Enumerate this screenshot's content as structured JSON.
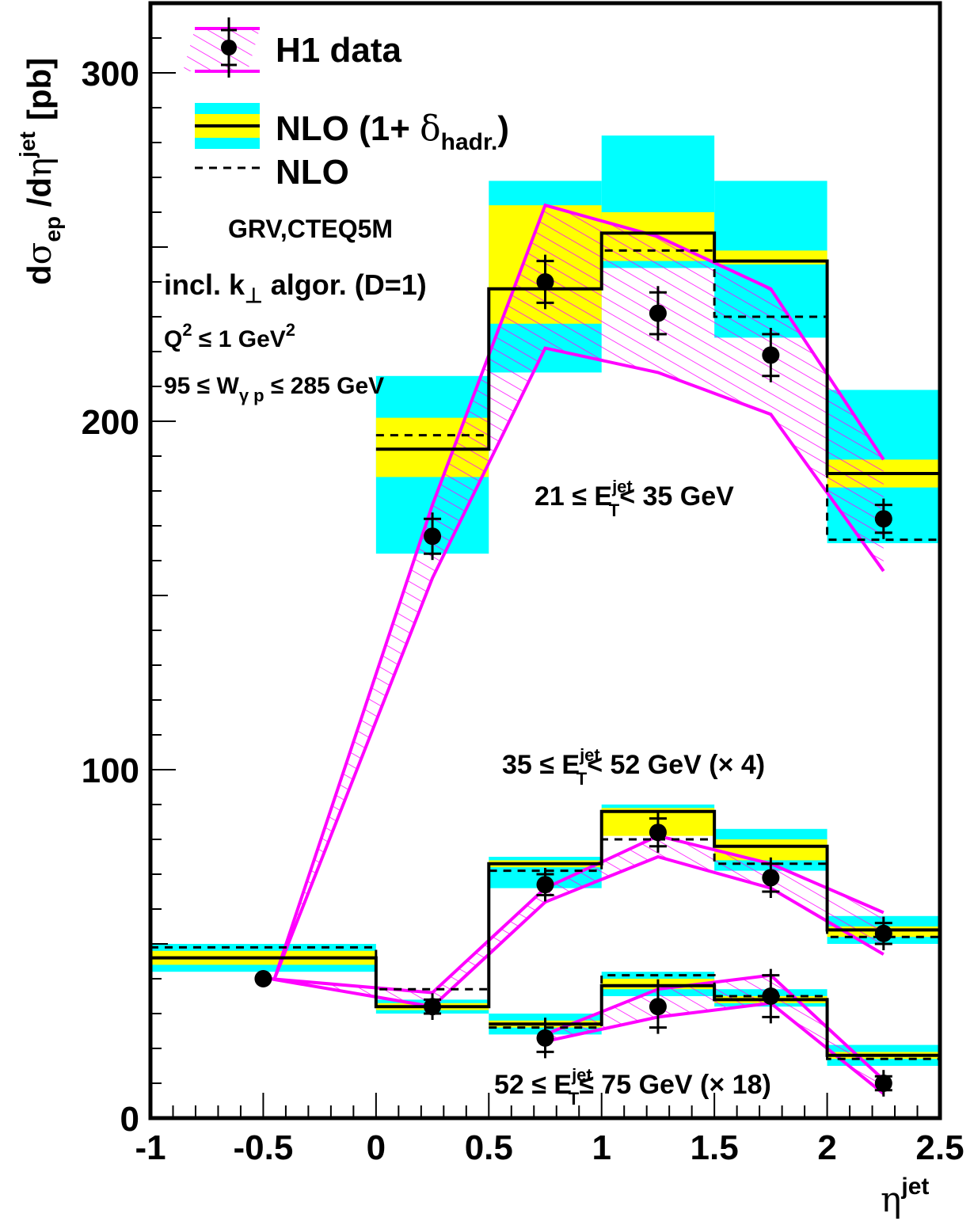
{
  "chart_data": {
    "type": "line",
    "title": "",
    "xlabel": "η",
    "xlabel_sup": "jet",
    "ylabel_parts": {
      "d1": "d",
      "sigma": "σ",
      "sub": "ep",
      "d2": " /d",
      "eta": "η",
      "sup": "jet",
      "unit": "[pb]"
    },
    "xlim": [
      -1,
      2.5
    ],
    "ylim": [
      0,
      320
    ],
    "x_ticks": [
      -1,
      -0.5,
      0,
      0.5,
      1,
      1.5,
      2,
      2.5
    ],
    "x_tick_labels": [
      "-1",
      "-0.5",
      "0",
      "0.5",
      "1",
      "1.5",
      "2",
      "2.5"
    ],
    "y_ticks": [
      0,
      100,
      200,
      300
    ],
    "y_tick_labels": [
      "0",
      "100",
      "200",
      "300"
    ],
    "legend": {
      "h1": "H1 data",
      "nlo_had_prefix": "NLO (1+ ",
      "nlo_had_delta": "δ",
      "nlo_had_sub": "hadr.",
      "nlo_had_suffix": ")",
      "nlo": "NLO"
    },
    "annotations": {
      "pdf": "GRV,CTEQ5M",
      "algo_prefix": "incl. k",
      "algo_sub": "⊥",
      "algo_suffix": " algor. (D=1)",
      "q2_a": "Q",
      "q2_sup": "2",
      "q2_b": " ≤ 1 GeV",
      "q2_sup2": "2",
      "w_a": "95 ≤ W",
      "w_sub": "γ p",
      "w_b": " ≤ 285 GeV"
    },
    "colors": {
      "hadr_band": "#ffff00",
      "total_band": "#00ffff",
      "data_band": "#ff00ff",
      "lines": "#000000"
    },
    "series": [
      {
        "label_a": "21 ≤ E",
        "label_sup": "jet",
        "label_sub": "T",
        "label_b": "< 35 GeV",
        "bins": [
          [
            0,
            0.5
          ],
          [
            0.5,
            1
          ],
          [
            1,
            1.5
          ],
          [
            1.5,
            2
          ],
          [
            2,
            2.5
          ]
        ],
        "nlo_had": [
          192,
          238,
          254,
          246,
          185
        ],
        "nlo": [
          196,
          238,
          249,
          230,
          166
        ],
        "had_band_lo": [
          184,
          228,
          246,
          245,
          181
        ],
        "had_band_hi": [
          201,
          262,
          260,
          249,
          189
        ],
        "total_band_lo": [
          162,
          214,
          244,
          224,
          165
        ],
        "total_band_hi": [
          213,
          269,
          282,
          269,
          209
        ],
        "data_x": [
          0.25,
          0.75,
          1.25,
          1.75,
          2.25
        ],
        "data_y": [
          167,
          240,
          231,
          219,
          172
        ],
        "data_err": [
          5,
          6,
          6,
          6,
          4
        ],
        "data_band_x": [
          -0.45,
          0.25,
          0.75,
          1.25,
          1.75,
          2.25
        ],
        "data_band_lo": [
          40,
          155,
          221,
          214,
          202,
          157
        ],
        "data_band_hi": [
          40,
          176,
          262,
          253,
          238,
          189
        ]
      },
      {
        "label_a": "35 ≤ E",
        "label_sup": "jet",
        "label_sub": "T",
        "label_b": "< 52 GeV (× 4)",
        "bins": [
          [
            -1,
            0
          ],
          [
            0,
            0.5
          ],
          [
            0.5,
            1
          ],
          [
            1,
            1.5
          ],
          [
            1.5,
            2
          ],
          [
            2,
            2.5
          ]
        ],
        "nlo_had": [
          46,
          32,
          73,
          88,
          78,
          54
        ],
        "nlo": [
          49,
          37,
          71,
          80,
          73,
          52
        ],
        "had_band_lo": [
          44,
          31,
          72,
          81,
          74,
          52
        ],
        "had_band_hi": [
          48,
          33,
          74,
          89,
          80,
          55
        ],
        "total_band_lo": [
          42,
          30,
          66,
          85,
          71,
          50
        ],
        "total_band_hi": [
          50,
          34,
          75,
          90,
          83,
          58
        ],
        "data_x": [
          -0.5,
          0.25,
          0.75,
          1.25,
          1.75,
          2.25
        ],
        "data_y": [
          40,
          32,
          67,
          82,
          69,
          53
        ],
        "data_err": [
          0,
          2,
          3,
          4,
          4,
          3
        ],
        "data_band_x": [
          -0.47,
          0.25,
          0.75,
          1.25,
          1.75,
          2.25
        ],
        "data_band_lo": [
          40,
          32,
          62,
          75,
          66,
          47
        ],
        "data_band_hi": [
          40,
          36,
          66,
          81,
          73,
          59
        ]
      },
      {
        "label_a": "52 ≤ E",
        "label_sup": "jet",
        "label_sub": "T",
        "label_b": "≤ 75 GeV (× 18)",
        "bins": [
          [
            0.5,
            1
          ],
          [
            1,
            1.5
          ],
          [
            1.5,
            2
          ],
          [
            2,
            2.5
          ]
        ],
        "nlo_had": [
          27,
          38,
          34,
          18
        ],
        "nlo": [
          26,
          41,
          35,
          17
        ],
        "had_band_lo": [
          26,
          37,
          33,
          17
        ],
        "had_band_hi": [
          28,
          40,
          35,
          19
        ],
        "total_band_lo": [
          24,
          35,
          32,
          15
        ],
        "total_band_hi": [
          30,
          42,
          37,
          21
        ],
        "data_x": [
          0.75,
          1.25,
          1.75,
          2.25
        ],
        "data_y": [
          23,
          32,
          35,
          10
        ],
        "data_err": [
          4,
          6,
          6,
          2
        ],
        "data_band_x": [
          0.75,
          1.25,
          1.75,
          2.25
        ],
        "data_band_lo": [
          22,
          29,
          33,
          7
        ],
        "data_band_hi": [
          24,
          37,
          41,
          11
        ]
      }
    ]
  }
}
